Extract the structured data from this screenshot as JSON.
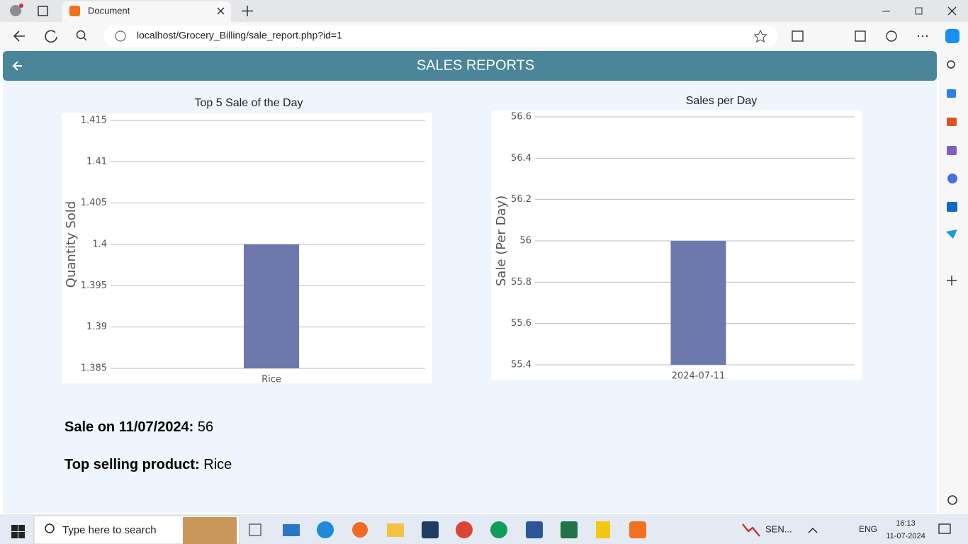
{
  "browser": {
    "tab_title": "Document",
    "url": "localhost/Grocery_Billing/sale_report.php?id=1"
  },
  "header": {
    "title": "SALES REPORTS"
  },
  "chart_data": [
    {
      "type": "bar",
      "title": "Top 5 Sale of the Day",
      "y_label": "Quantity Sold",
      "categories": [
        "Rice"
      ],
      "values": [
        1.4
      ],
      "color": "#6d78ad",
      "ylim": [
        1.385,
        1.415
      ],
      "yticks": [
        1.385,
        1.39,
        1.395,
        1.4,
        1.405,
        1.41,
        1.415
      ],
      "grid": true
    },
    {
      "type": "bar",
      "title": "Sales per Day",
      "y_label": "Sale (Per Day)",
      "categories": [
        "2024-07-11"
      ],
      "values": [
        56
      ],
      "color": "#6d78ad",
      "ylim": [
        55.4,
        56.6
      ],
      "yticks": [
        55.4,
        55.6,
        55.8,
        56,
        56.2,
        56.4,
        56.6
      ],
      "grid": true
    }
  ],
  "summary": [
    {
      "label": "Sale on 11/07/2024:",
      "value": 56
    },
    {
      "label": "Top selling product:",
      "value": "Rice"
    }
  ],
  "taskbar": {
    "search_placeholder": "Type here to search",
    "tray_app": "SEN...",
    "language": "ENG",
    "time": "16:13",
    "date": "11-07-2024"
  }
}
